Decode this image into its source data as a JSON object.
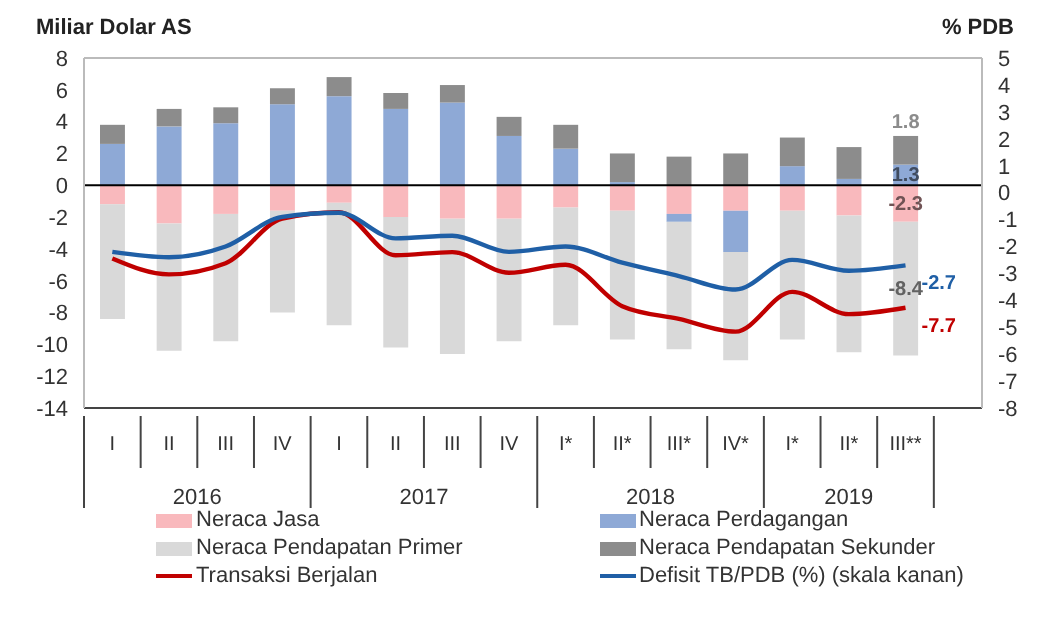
{
  "chart_data": {
    "type": "bar",
    "stacked": true,
    "ylabel": "Miliar Dolar AS",
    "y2label": "% PDB",
    "categories": [
      "I",
      "II",
      "III",
      "IV",
      "I",
      "II",
      "III",
      "IV",
      "I*",
      "II*",
      "III*",
      "IV*",
      "I*",
      "II*",
      "III**"
    ],
    "annotations": [
      "2016",
      "2017",
      "2018",
      "2019"
    ],
    "series": [
      {
        "name": "Neraca Jasa",
        "color": "#f9b9bd",
        "values": [
          -1.2,
          -2.4,
          -1.8,
          -1.6,
          -1.1,
          -2.0,
          -2.1,
          -2.1,
          -1.4,
          -1.6,
          -1.8,
          -1.6,
          -1.6,
          -1.9,
          -2.3
        ],
        "value_labels": [
          null,
          null,
          null,
          null,
          null,
          null,
          null,
          null,
          null,
          null,
          null,
          null,
          null,
          null,
          "-2.3"
        ]
      },
      {
        "name": "Neraca Perdagangan",
        "color": "#8ea9d6",
        "values": [
          2.6,
          3.7,
          3.9,
          5.1,
          5.6,
          4.8,
          5.2,
          3.1,
          2.3,
          0.2,
          -0.5,
          -2.6,
          1.2,
          0.4,
          1.3
        ],
        "value_labels": [
          null,
          null,
          null,
          null,
          null,
          null,
          null,
          null,
          null,
          null,
          null,
          null,
          null,
          null,
          "1.3"
        ]
      },
      {
        "name": "Neraca Pendapatan Primer",
        "color": "#d9d9d9",
        "values": [
          -7.2,
          -8.0,
          -8.0,
          -6.4,
          -7.7,
          -8.2,
          -8.5,
          -7.7,
          -7.4,
          -8.1,
          -8.0,
          -6.8,
          -8.1,
          -8.6,
          -8.4
        ],
        "value_labels": [
          null,
          null,
          null,
          null,
          null,
          null,
          null,
          null,
          null,
          null,
          null,
          null,
          null,
          null,
          "-8.4"
        ]
      },
      {
        "name": "Neraca Pendapatan Sekunder",
        "color": "#8c8c8c",
        "values": [
          1.2,
          1.1,
          1.0,
          1.0,
          1.2,
          1.0,
          1.1,
          1.2,
          1.5,
          1.8,
          1.8,
          2.0,
          1.8,
          2.0,
          1.8
        ],
        "value_labels": [
          null,
          null,
          null,
          null,
          null,
          null,
          null,
          null,
          null,
          null,
          null,
          null,
          null,
          null,
          "1.8"
        ]
      },
      {
        "name": "Transaksi Berjalan",
        "type": "line",
        "color": "#c00000",
        "values": [
          -4.6,
          -5.6,
          -4.9,
          -2.1,
          -1.7,
          -4.4,
          -4.2,
          -5.5,
          -5.0,
          -7.6,
          -8.4,
          -9.2,
          -6.7,
          -8.1,
          -7.7
        ],
        "value_labels": [
          null,
          null,
          null,
          null,
          null,
          null,
          null,
          null,
          null,
          null,
          null,
          null,
          null,
          null,
          "-7.7"
        ]
      },
      {
        "name": "Defisit TB/PDB (%) (skala kanan)",
        "type": "line",
        "axis": "y2",
        "color": "#1f5fa6",
        "values": [
          -2.2,
          -2.4,
          -2.0,
          -0.9,
          -0.75,
          -1.7,
          -1.6,
          -2.2,
          -2.0,
          -2.6,
          -3.1,
          -3.6,
          -2.5,
          -2.9,
          -2.7
        ],
        "value_labels": [
          null,
          null,
          null,
          null,
          null,
          null,
          null,
          null,
          null,
          null,
          null,
          null,
          null,
          null,
          "-2.7"
        ]
      }
    ],
    "ylim": [
      -14,
      8
    ],
    "yticks": [
      -14,
      -12,
      -10,
      -8,
      -6,
      -4,
      -2,
      0,
      2,
      4,
      6,
      8
    ],
    "y2lim": [
      -8,
      5
    ],
    "y2ticks": [
      -8,
      -7,
      -6,
      -5,
      -4,
      -3,
      -2,
      -1,
      0,
      1,
      2,
      3,
      4,
      5
    ],
    "ref_lines": [
      {
        "axis": "y",
        "value": 0,
        "color": "#000000"
      }
    ],
    "legend": "bottom"
  }
}
